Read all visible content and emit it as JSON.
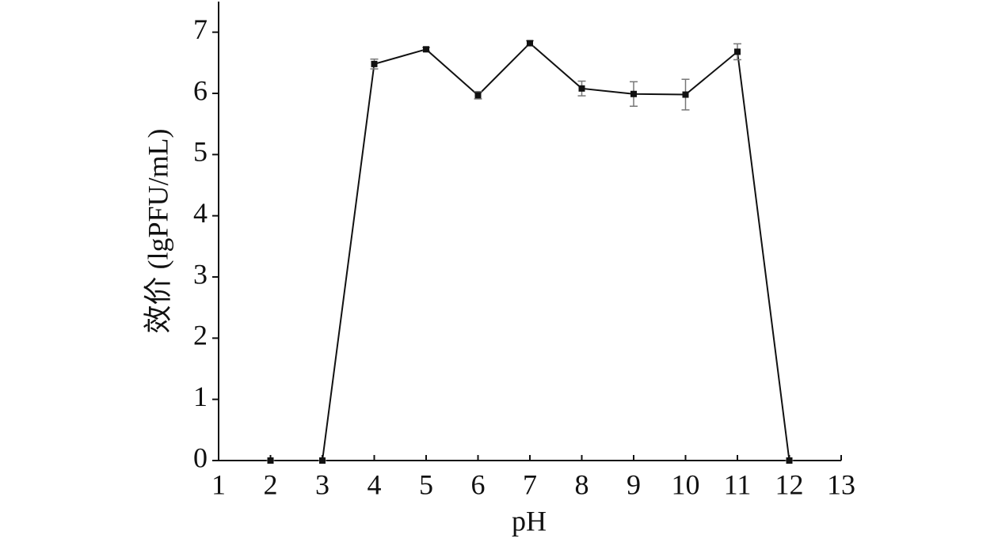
{
  "chart_data": {
    "type": "line",
    "x_label": "pH",
    "y_label": "效价 (lgPFU/mL)",
    "x": [
      2,
      3,
      4,
      5,
      6,
      7,
      8,
      9,
      10,
      11,
      12
    ],
    "series": [
      {
        "color": "#111111",
        "values": [
          0,
          0,
          6.48,
          6.72,
          5.97,
          6.82,
          6.08,
          5.99,
          5.98,
          6.68,
          0
        ],
        "errors": [
          0,
          0,
          0.08,
          0.03,
          0.06,
          0.04,
          0.12,
          0.2,
          0.25,
          0.13,
          0
        ]
      }
    ],
    "xlim": [
      1,
      13
    ],
    "ylim": [
      0,
      7.5
    ],
    "xticks": [
      1,
      2,
      3,
      4,
      5,
      6,
      7,
      8,
      9,
      10,
      11,
      12,
      13
    ],
    "yticks": [
      0,
      1,
      2,
      3,
      4,
      5,
      6,
      7
    ]
  }
}
